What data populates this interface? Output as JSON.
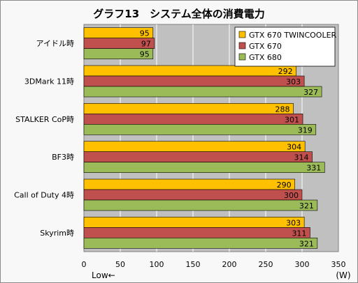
{
  "chart_data": {
    "type": "bar",
    "orientation": "horizontal",
    "title": "グラフ13　システム全体の消費電力",
    "categories": [
      "アイドル時",
      "3DMark 11時",
      "STALKER CoP時",
      "BF3時",
      "Call of Duty 4時",
      "Skyrim時"
    ],
    "series": [
      {
        "name": "GTX 670 TWINCOOLER",
        "color": "#ffc000",
        "values": [
          95,
          292,
          288,
          304,
          290,
          303
        ]
      },
      {
        "name": "GTX 670",
        "color": "#c0504d",
        "values": [
          97,
          303,
          301,
          314,
          300,
          311
        ]
      },
      {
        "name": "GTX 680",
        "color": "#9bbb59",
        "values": [
          95,
          327,
          319,
          331,
          321,
          321
        ]
      }
    ],
    "xlim": [
      0,
      350
    ],
    "xticks": [
      0,
      50,
      100,
      150,
      200,
      250,
      300,
      350
    ],
    "xlabel": "Low←",
    "unit": "(W)",
    "grid": true,
    "legend_position": "top-right"
  },
  "colors": {
    "plot_background": "#c0c0c0",
    "grid": "#ffffff"
  }
}
